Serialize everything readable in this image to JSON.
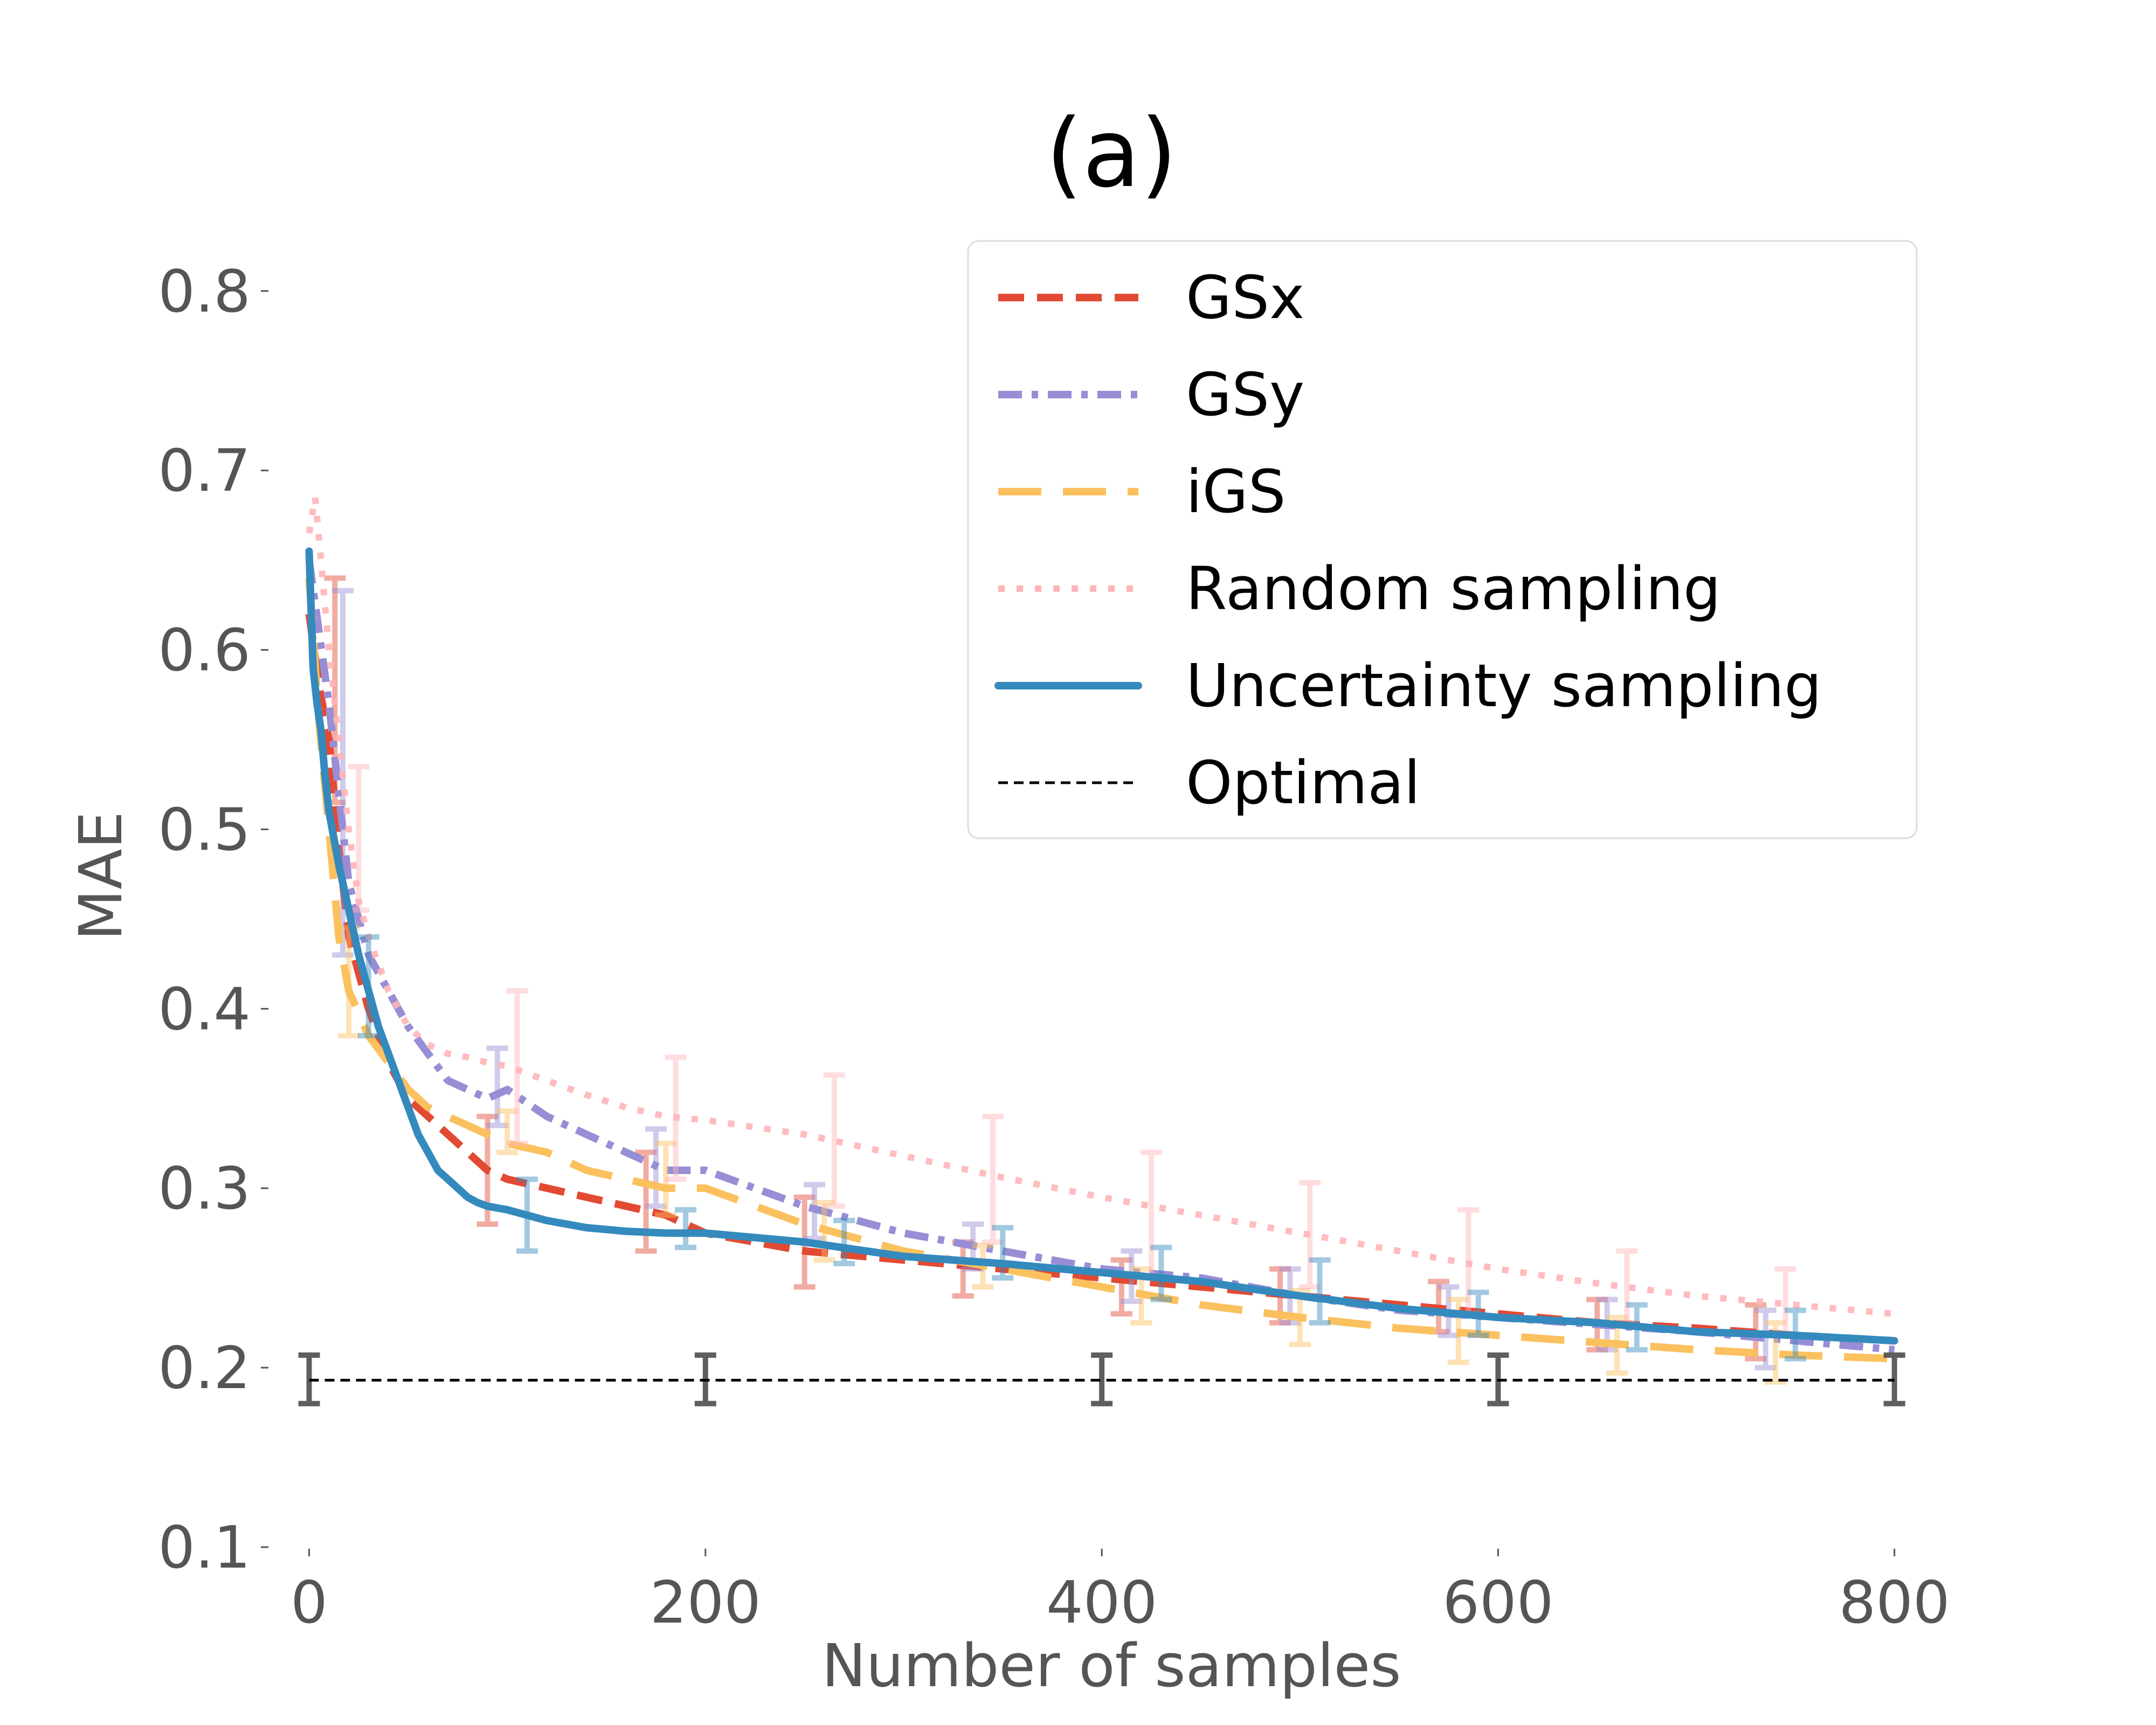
{
  "chart_data": {
    "type": "line",
    "title": "(a)",
    "xlabel": "Number of samples",
    "ylabel": "MAE",
    "xlim": [
      -20,
      830
    ],
    "ylim": [
      0.1,
      0.83
    ],
    "xticks": [
      0,
      200,
      400,
      600,
      800
    ],
    "yticks": [
      0.1,
      0.2,
      0.3,
      0.4,
      0.5,
      0.6,
      0.7,
      0.8
    ],
    "xtick_labels": [
      "0",
      "200",
      "400",
      "600",
      "800"
    ],
    "ytick_labels": [
      "0.1",
      "0.2",
      "0.3",
      "0.4",
      "0.5",
      "0.6",
      "0.7",
      "0.8"
    ],
    "grid": false,
    "legend_position": "top-right",
    "series": [
      {
        "name": "GSx",
        "color": "#e24a33",
        "style": "dashed",
        "x": [
          0,
          5,
          10,
          15,
          20,
          30,
          40,
          50,
          60,
          70,
          80,
          90,
          100,
          120,
          140,
          160,
          180,
          200,
          250,
          300,
          350,
          400,
          450,
          500,
          550,
          600,
          650,
          700,
          750,
          800
        ],
        "y": [
          0.62,
          0.58,
          0.55,
          0.49,
          0.44,
          0.4,
          0.37,
          0.35,
          0.34,
          0.33,
          0.32,
          0.31,
          0.305,
          0.3,
          0.295,
          0.29,
          0.285,
          0.275,
          0.265,
          0.26,
          0.255,
          0.25,
          0.245,
          0.24,
          0.235,
          0.23,
          0.225,
          0.222,
          0.218,
          0.215
        ],
        "errorbars": [
          {
            "x": 13,
            "low": 0.515,
            "high": 0.64
          },
          {
            "x": 90,
            "low": 0.28,
            "high": 0.34
          },
          {
            "x": 170,
            "low": 0.265,
            "high": 0.32
          },
          {
            "x": 250,
            "low": 0.245,
            "high": 0.295
          },
          {
            "x": 330,
            "low": 0.24,
            "high": 0.27
          },
          {
            "x": 410,
            "low": 0.23,
            "high": 0.26
          },
          {
            "x": 490,
            "low": 0.225,
            "high": 0.255
          },
          {
            "x": 570,
            "low": 0.22,
            "high": 0.248
          },
          {
            "x": 650,
            "low": 0.21,
            "high": 0.238
          },
          {
            "x": 730,
            "low": 0.205,
            "high": 0.235
          }
        ]
      },
      {
        "name": "GSy",
        "color": "#988ed5",
        "style": "dashdot",
        "x": [
          0,
          5,
          10,
          15,
          20,
          30,
          40,
          50,
          60,
          70,
          80,
          90,
          100,
          120,
          140,
          160,
          180,
          200,
          250,
          300,
          350,
          400,
          450,
          500,
          550,
          600,
          650,
          700,
          750,
          800
        ],
        "y": [
          0.65,
          0.61,
          0.57,
          0.52,
          0.47,
          0.43,
          0.41,
          0.39,
          0.375,
          0.36,
          0.355,
          0.35,
          0.355,
          0.34,
          0.33,
          0.32,
          0.31,
          0.31,
          0.29,
          0.275,
          0.265,
          0.255,
          0.25,
          0.24,
          0.232,
          0.228,
          0.224,
          0.22,
          0.215,
          0.21
        ],
        "errorbars": [
          {
            "x": 17,
            "low": 0.43,
            "high": 0.633
          },
          {
            "x": 95,
            "low": 0.335,
            "high": 0.378
          },
          {
            "x": 175,
            "low": 0.29,
            "high": 0.333
          },
          {
            "x": 255,
            "low": 0.272,
            "high": 0.302
          },
          {
            "x": 335,
            "low": 0.255,
            "high": 0.28
          },
          {
            "x": 415,
            "low": 0.237,
            "high": 0.265
          },
          {
            "x": 495,
            "low": 0.225,
            "high": 0.255
          },
          {
            "x": 575,
            "low": 0.218,
            "high": 0.245
          },
          {
            "x": 655,
            "low": 0.21,
            "high": 0.238
          },
          {
            "x": 735,
            "low": 0.2,
            "high": 0.232
          }
        ]
      },
      {
        "name": "iGS",
        "color": "#fbc15e",
        "style": "longdash",
        "x": [
          0,
          5,
          10,
          15,
          20,
          30,
          40,
          50,
          60,
          70,
          80,
          90,
          100,
          120,
          140,
          160,
          180,
          200,
          250,
          300,
          350,
          400,
          450,
          500,
          550,
          600,
          650,
          700,
          750,
          800
        ],
        "y": [
          0.64,
          0.56,
          0.5,
          0.44,
          0.41,
          0.385,
          0.37,
          0.355,
          0.345,
          0.34,
          0.335,
          0.33,
          0.325,
          0.32,
          0.31,
          0.305,
          0.3,
          0.3,
          0.28,
          0.265,
          0.255,
          0.245,
          0.235,
          0.228,
          0.222,
          0.218,
          0.214,
          0.21,
          0.207,
          0.205
        ],
        "errorbars": [
          {
            "x": 20,
            "low": 0.385,
            "high": 0.445
          },
          {
            "x": 100,
            "low": 0.32,
            "high": 0.343
          },
          {
            "x": 180,
            "low": 0.285,
            "high": 0.325
          },
          {
            "x": 260,
            "low": 0.26,
            "high": 0.292
          },
          {
            "x": 340,
            "low": 0.245,
            "high": 0.268
          },
          {
            "x": 420,
            "low": 0.225,
            "high": 0.255
          },
          {
            "x": 500,
            "low": 0.213,
            "high": 0.243
          },
          {
            "x": 580,
            "low": 0.203,
            "high": 0.238
          },
          {
            "x": 660,
            "low": 0.197,
            "high": 0.228
          },
          {
            "x": 740,
            "low": 0.192,
            "high": 0.225
          }
        ]
      },
      {
        "name": "Random sampling",
        "color": "#ffb5b8",
        "style": "dotted",
        "x": [
          0,
          3,
          6,
          10,
          15,
          20,
          25,
          30,
          40,
          50,
          60,
          70,
          80,
          90,
          100,
          120,
          140,
          160,
          180,
          200,
          250,
          300,
          350,
          400,
          450,
          500,
          550,
          600,
          650,
          700,
          750,
          800
        ],
        "y": [
          0.665,
          0.685,
          0.65,
          0.6,
          0.55,
          0.5,
          0.46,
          0.44,
          0.41,
          0.39,
          0.38,
          0.375,
          0.373,
          0.37,
          0.368,
          0.36,
          0.352,
          0.345,
          0.34,
          0.338,
          0.33,
          0.318,
          0.306,
          0.295,
          0.285,
          0.275,
          0.265,
          0.255,
          0.247,
          0.24,
          0.235,
          0.23
        ],
        "errorbars": [
          {
            "x": 25,
            "low": 0.455,
            "high": 0.535
          },
          {
            "x": 105,
            "low": 0.325,
            "high": 0.41
          },
          {
            "x": 185,
            "low": 0.305,
            "high": 0.373
          },
          {
            "x": 265,
            "low": 0.29,
            "high": 0.363
          },
          {
            "x": 345,
            "low": 0.27,
            "high": 0.34
          },
          {
            "x": 425,
            "low": 0.25,
            "high": 0.32
          },
          {
            "x": 505,
            "low": 0.245,
            "high": 0.303
          },
          {
            "x": 585,
            "low": 0.23,
            "high": 0.288
          },
          {
            "x": 665,
            "low": 0.225,
            "high": 0.265
          },
          {
            "x": 745,
            "low": 0.218,
            "high": 0.255
          }
        ]
      },
      {
        "name": "Uncertainty sampling",
        "color": "#348abd",
        "style": "solid",
        "x": [
          0,
          2,
          4,
          6,
          8,
          10,
          15,
          20,
          25,
          30,
          35,
          40,
          45,
          50,
          55,
          60,
          65,
          70,
          75,
          80,
          85,
          90,
          100,
          110,
          120,
          140,
          160,
          180,
          200,
          250,
          300,
          350,
          400,
          450,
          500,
          550,
          600,
          650,
          700,
          750,
          800
        ],
        "y": [
          0.655,
          0.59,
          0.57,
          0.555,
          0.53,
          0.51,
          0.48,
          0.455,
          0.43,
          0.41,
          0.39,
          0.375,
          0.36,
          0.345,
          0.33,
          0.32,
          0.31,
          0.305,
          0.3,
          0.295,
          0.292,
          0.29,
          0.288,
          0.285,
          0.282,
          0.278,
          0.276,
          0.275,
          0.275,
          0.27,
          0.262,
          0.258,
          0.253,
          0.248,
          0.24,
          0.233,
          0.228,
          0.225,
          0.22,
          0.218,
          0.215
        ],
        "errorbars": [
          {
            "x": 30,
            "low": 0.385,
            "high": 0.44
          },
          {
            "x": 110,
            "low": 0.265,
            "high": 0.305
          },
          {
            "x": 190,
            "low": 0.267,
            "high": 0.288
          },
          {
            "x": 270,
            "low": 0.258,
            "high": 0.282
          },
          {
            "x": 350,
            "low": 0.25,
            "high": 0.278
          },
          {
            "x": 430,
            "low": 0.238,
            "high": 0.267
          },
          {
            "x": 510,
            "low": 0.225,
            "high": 0.26
          },
          {
            "x": 590,
            "low": 0.218,
            "high": 0.242
          },
          {
            "x": 670,
            "low": 0.21,
            "high": 0.235
          },
          {
            "x": 750,
            "low": 0.205,
            "high": 0.232
          }
        ]
      },
      {
        "name": "Optimal",
        "color": "#000000",
        "style": "finedash",
        "x": [
          0,
          800
        ],
        "y": [
          0.193,
          0.193
        ],
        "errorbars": [
          {
            "x": 0,
            "low": 0.18,
            "high": 0.207
          },
          {
            "x": 200,
            "low": 0.18,
            "high": 0.207
          },
          {
            "x": 400,
            "low": 0.18,
            "high": 0.207
          },
          {
            "x": 600,
            "low": 0.18,
            "high": 0.207
          },
          {
            "x": 800,
            "low": 0.18,
            "high": 0.207
          }
        ]
      }
    ]
  }
}
